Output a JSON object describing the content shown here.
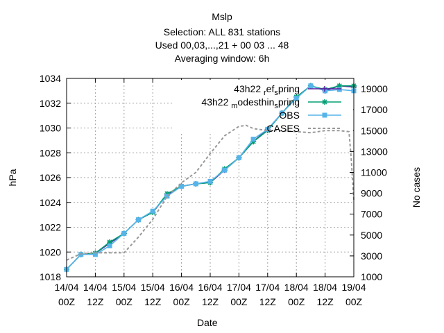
{
  "chart_data": {
    "type": "line",
    "title_lines": [
      "Mslp",
      "Selection: ALL    831 stations",
      "Used  00,03,...,21  + 00 03 ... 48",
      "Averaging window:  6h"
    ],
    "xlabel": "Date",
    "ylabel": "hPa",
    "y2label": "No cases",
    "xlim": [
      0,
      120
    ],
    "ylim": [
      1018,
      1034
    ],
    "y2lim": [
      1000,
      20000
    ],
    "x_ticks": [
      0,
      12,
      24,
      36,
      48,
      60,
      72,
      84,
      96,
      108,
      120
    ],
    "x_tick_labels": [
      [
        "14/04",
        "00Z"
      ],
      [
        "14/04",
        "12Z"
      ],
      [
        "15/04",
        "00Z"
      ],
      [
        "15/04",
        "12Z"
      ],
      [
        "16/04",
        "00Z"
      ],
      [
        "16/04",
        "12Z"
      ],
      [
        "17/04",
        "00Z"
      ],
      [
        "17/04",
        "12Z"
      ],
      [
        "18/04",
        "00Z"
      ],
      [
        "18/04",
        "12Z"
      ],
      [
        "19/04",
        "00Z"
      ]
    ],
    "y_ticks": [
      1018,
      1020,
      1022,
      1024,
      1026,
      1028,
      1030,
      1032,
      1034
    ],
    "y2_ticks": [
      1000,
      3000,
      5000,
      7000,
      9000,
      11000,
      13000,
      15000,
      17000,
      19000
    ],
    "grid": true,
    "legend_position": "top-right",
    "series": [
      {
        "name": "43h22 ref_spring",
        "legend_label": {
          "pre": "43h22 ",
          "sub": "r",
          "mid": "ef",
          "sub2": "s",
          "post": "pring"
        },
        "color": "#5a1fa0",
        "marker": "plus",
        "axis": "y",
        "x": [
          0,
          6,
          12,
          18,
          24,
          30,
          36,
          42,
          48,
          54,
          60,
          66,
          72,
          78,
          84,
          90,
          96,
          102,
          108,
          114,
          120
        ],
        "y": [
          1018.6,
          1019.8,
          1019.9,
          1020.7,
          1021.5,
          1022.6,
          1023.2,
          1024.6,
          1025.3,
          1025.5,
          1025.6,
          1026.6,
          1027.6,
          1028.9,
          1029.9,
          1031.2,
          1032.5,
          1033.4,
          1033.0,
          1033.4,
          1033.3
        ]
      },
      {
        "name": "43h22 modesthin_spring",
        "legend_label": {
          "pre": "43h22 ",
          "sub": "m",
          "mid": "odesthin",
          "sub2": "s",
          "post": "pring"
        },
        "color": "#009e73",
        "marker": "star",
        "axis": "y",
        "x": [
          0,
          6,
          12,
          18,
          24,
          30,
          36,
          42,
          48,
          54,
          60,
          66,
          72,
          78,
          84,
          90,
          96,
          102,
          108,
          114,
          120
        ],
        "y": [
          1018.6,
          1019.8,
          1019.9,
          1020.8,
          1021.5,
          1022.6,
          1023.2,
          1024.7,
          1025.3,
          1025.5,
          1025.6,
          1026.7,
          1027.6,
          1028.9,
          1029.8,
          1031.2,
          1032.5,
          1033.4,
          1033.1,
          1033.4,
          1033.4
        ]
      },
      {
        "name": "OBS",
        "legend_label": {
          "pre": "OBS",
          "sub": "",
          "mid": "",
          "sub2": "",
          "post": ""
        },
        "color": "#56b4e9",
        "marker": "square",
        "axis": "y",
        "x": [
          0,
          6,
          12,
          18,
          24,
          30,
          36,
          42,
          48,
          54,
          60,
          66,
          72,
          78,
          84,
          90,
          96,
          102,
          108,
          114,
          120
        ],
        "y": [
          1018.6,
          1019.8,
          1019.8,
          1020.5,
          1021.5,
          1022.6,
          1023.3,
          1024.5,
          1025.3,
          1025.5,
          1025.7,
          1026.6,
          1027.6,
          1029.1,
          1029.9,
          1031.2,
          1032.4,
          1033.4,
          1033.0,
          1033.1,
          1033.0
        ]
      },
      {
        "name": "CASES",
        "legend_label": {
          "pre": "CASES",
          "sub": "",
          "mid": "",
          "sub2": "",
          "post": ""
        },
        "color": "#999999",
        "marker": "none",
        "dashed": true,
        "axis": "y2",
        "x": [
          0,
          3,
          6,
          12,
          18,
          21,
          24,
          30,
          36,
          42,
          48,
          54,
          60,
          66,
          72,
          75,
          78,
          84,
          90,
          96,
          102,
          108,
          114,
          118,
          119,
          120
        ],
        "y": [
          2600,
          2900,
          3200,
          3300,
          3300,
          3300,
          3300,
          4800,
          6500,
          8700,
          10000,
          11000,
          12800,
          14500,
          15400,
          15500,
          15200,
          15000,
          15000,
          14900,
          14800,
          15000,
          15000,
          14900,
          12000,
          8300
        ]
      }
    ]
  }
}
